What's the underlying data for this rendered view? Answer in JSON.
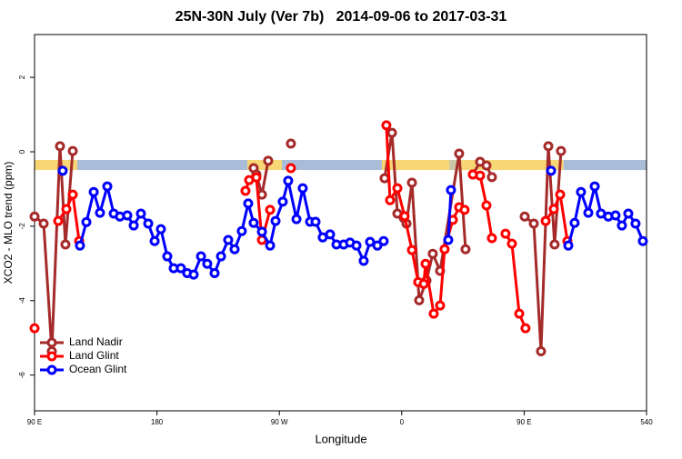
{
  "chart_data": {
    "type": "line",
    "title": "25N-30N July (Ver 7b)   2014-09-06 to 2017-03-31",
    "xlabel": "Longitude",
    "ylabel": "XCO2 - MLO trend (ppm)",
    "xlim": [
      90,
      540
    ],
    "xticks": [
      {
        "value": 90,
        "label": "90 E"
      },
      180,
      {
        "value": 270,
        "label": "90 W"
      },
      {
        "value": 360,
        "label": "0"
      },
      {
        "value": 450,
        "label": "90 E"
      },
      540
    ],
    "ylim": [
      -6.96,
      3.15
    ],
    "yticks": [
      2,
      0,
      -2,
      -4,
      -6
    ],
    "legend": "bottom-left",
    "band": {
      "ylim": [
        -0.49,
        -0.22
      ],
      "segments": [
        {
          "from": 90,
          "to": 121.4,
          "color": "#f7d675"
        },
        {
          "from": 121.4,
          "to": 246.5,
          "color": "#a9bcd8"
        },
        {
          "from": 246.5,
          "to": 271.9,
          "color": "#f7d675"
        },
        {
          "from": 271.9,
          "to": 345.4,
          "color": "#a9bcd8"
        },
        {
          "from": 345.4,
          "to": 395,
          "color": "#f7d675"
        },
        {
          "from": 395,
          "to": 400,
          "color": "#c9c7a8"
        },
        {
          "from": 400,
          "to": 479,
          "color": "#f7d675"
        },
        {
          "from": 479,
          "to": 540,
          "color": "#a9bcd8"
        }
      ]
    },
    "series": [
      {
        "name": "Land Nadir",
        "color": "#a52a2a",
        "x": [
          90,
          96.7,
          102.7,
          108.7,
          112.7,
          118.1,
          null,
          251.1,
          253.1,
          257.2,
          261.8,
          null,
          278.5,
          null,
          347.4,
          352.8,
          356.8,
          361.5,
          363.5,
          367.5,
          372.8,
          378.2,
          382.8,
          388.2,
          402.2,
          406.9,
          null,
          412.3,
          417.6,
          422.3,
          426.3,
          null,
          450.4,
          457.1,
          462.4,
          467.8,
          472.4,
          477.1
        ],
        "values": [
          -1.74,
          -1.93,
          -5.36,
          0.15,
          -2.49,
          0.02,
          null,
          -0.44,
          -0.61,
          -1.15,
          -0.24,
          null,
          0.22,
          null,
          -0.71,
          0.51,
          -1.66,
          -1.78,
          -1.93,
          -0.83,
          -3.99,
          -3.46,
          -2.74,
          -3.2,
          -0.05,
          -2.62,
          null,
          -0.61,
          -0.27,
          -0.37,
          -0.68,
          null,
          -1.74,
          -1.93,
          -5.36,
          0.15,
          -2.49,
          0.02
        ]
      },
      {
        "name": "Land Glint",
        "color": "#ff0000",
        "x": [
          90,
          null,
          107.4,
          113.4,
          118.1,
          122.8,
          null,
          245.1,
          247.8,
          253.1,
          257.2,
          263.2,
          null,
          278.5,
          null,
          348.7,
          351.4,
          356.8,
          362.1,
          367.5,
          372.1,
          376.2,
          377.5,
          383.5,
          388.2,
          391.5,
          397.6,
          402.2,
          406.2,
          null,
          412.3,
          417.6,
          422.3,
          426.3,
          null,
          436.3,
          441,
          446.4,
          451,
          null,
          465.8,
          471.8,
          476.5,
          481.8
        ],
        "values": [
          -4.74,
          null,
          -1.86,
          -1.54,
          -1.15,
          -2.4,
          null,
          -1.05,
          -0.76,
          -0.69,
          -2.37,
          -1.56,
          null,
          -0.44,
          null,
          0.71,
          -1.3,
          -0.98,
          -1.73,
          -2.64,
          -3.5,
          -3.55,
          -3.01,
          -4.35,
          -4.13,
          -2.62,
          -1.83,
          -1.49,
          -1.56,
          null,
          -0.61,
          -0.64,
          -1.44,
          -2.32,
          null,
          -2.2,
          -2.47,
          -4.35,
          -4.74,
          null,
          -1.86,
          -1.54,
          -1.15,
          -2.4
        ]
      },
      {
        "name": "Ocean Glint",
        "color": "#0000ff",
        "x": [
          110.7,
          null,
          123.4,
          128.1,
          133.5,
          138.1,
          143.5,
          148.2,
          152.8,
          158.2,
          162.9,
          168.2,
          173.6,
          178.3,
          182.9,
          187.6,
          192.3,
          197.6,
          202.3,
          207,
          212.4,
          217,
          222.4,
          227.1,
          232.4,
          237.1,
          242.4,
          247.1,
          251.1,
          257.2,
          263.2,
          267.2,
          272.5,
          276.5,
          282.6,
          287.2,
          292.6,
          296.6,
          301.9,
          307.3,
          312,
          317.3,
          322,
          326.7,
          332,
          336.7,
          342.1,
          346.7,
          null,
          394.2,
          396.2,
          null,
          469.8,
          null,
          482.5,
          487.1,
          491.8,
          497.2,
          501.9,
          506.5,
          511.9,
          517.2,
          521.9,
          526.6,
          531.9,
          537.3
        ],
        "values": [
          -0.51,
          null,
          -2.52,
          -1.89,
          -1.08,
          -1.64,
          -0.93,
          -1.66,
          -1.74,
          -1.71,
          -1.98,
          -1.66,
          -1.93,
          -2.4,
          -2.08,
          -2.81,
          -3.13,
          -3.13,
          -3.26,
          -3.3,
          -2.81,
          -3.01,
          -3.26,
          -2.81,
          -2.37,
          -2.62,
          -2.13,
          -1.39,
          -1.91,
          -2.15,
          -2.52,
          -1.86,
          -1.34,
          -0.78,
          -1.81,
          -0.98,
          -1.88,
          -1.88,
          -2.3,
          -2.22,
          -2.49,
          -2.49,
          -2.44,
          -2.52,
          -2.93,
          -2.42,
          -2.52,
          -2.4,
          null,
          -2.37,
          -1.03,
          null,
          -0.51,
          null,
          -2.52,
          -1.91,
          -1.08,
          -1.64,
          -0.93,
          -1.66,
          -1.74,
          -1.71,
          -1.98,
          -1.66,
          -1.93,
          -2.4
        ]
      }
    ]
  }
}
